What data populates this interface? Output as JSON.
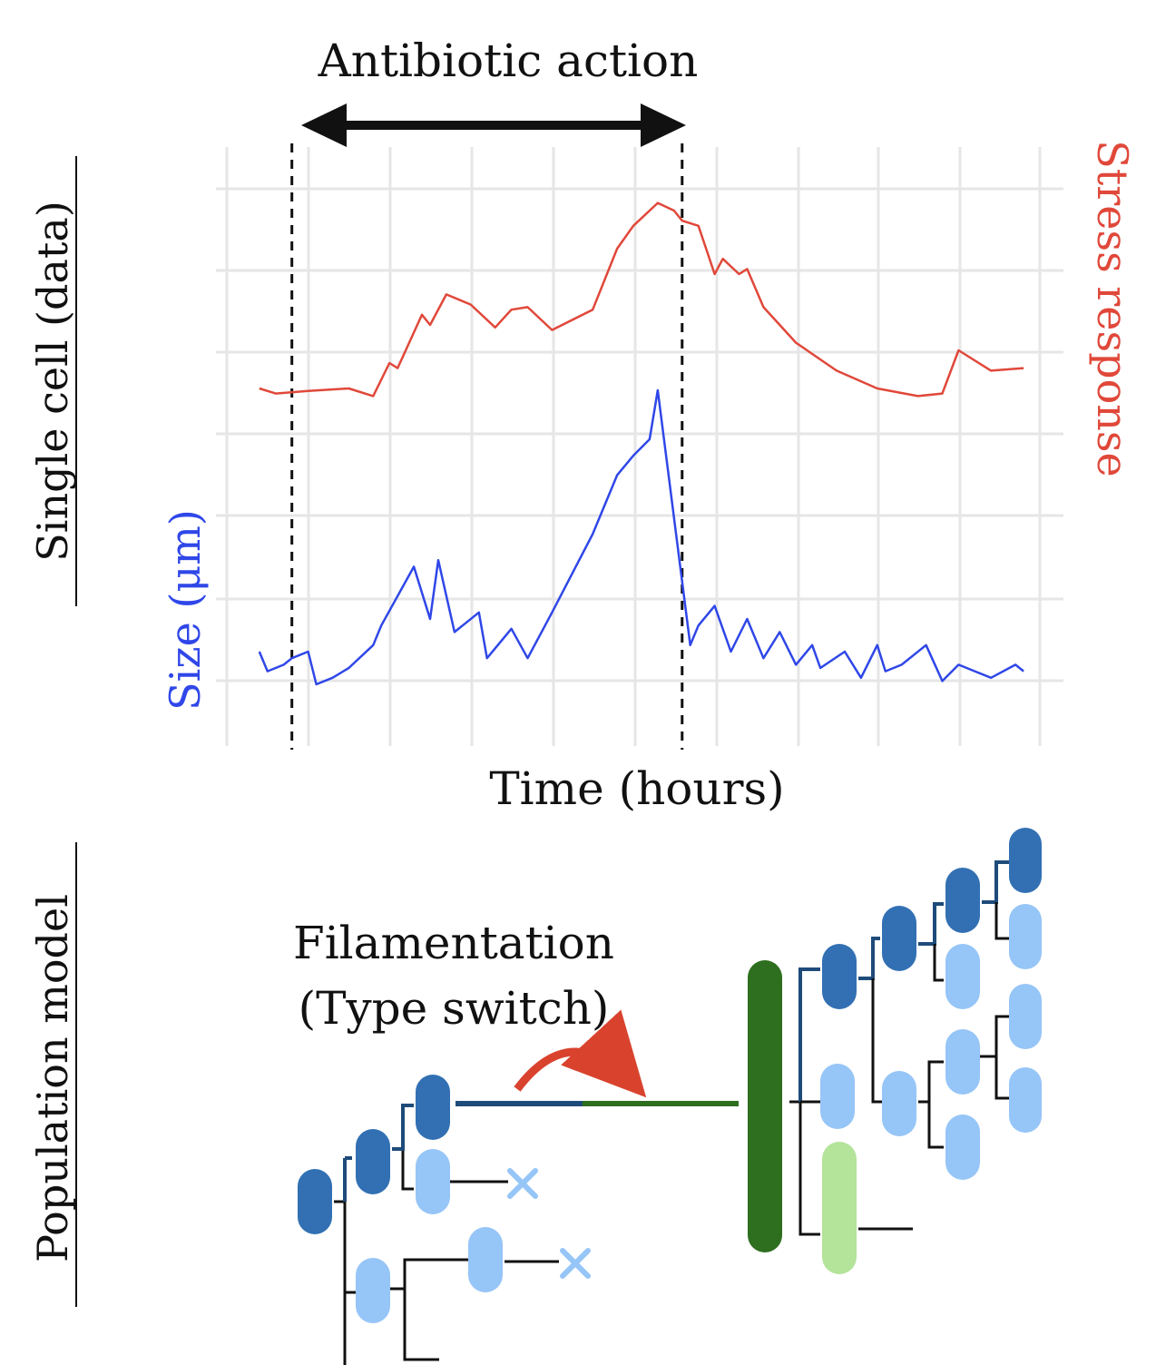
{
  "top_panel": {
    "side_label": "Single cell (data)",
    "title": "Antibiotic action",
    "right_label": "Stress response",
    "left_label": "Size (μm)",
    "x_label": "Time (hours)"
  },
  "bottom_panel": {
    "side_label": "Population model",
    "caption_line1": "Filamentation",
    "caption_line2": "(Type switch)"
  },
  "colors": {
    "stress": "#e0483a",
    "size": "#2f47e8",
    "cell_dark": "#3270b3",
    "cell_light": "#96c5f7",
    "filament": "#2e6e1f",
    "filament_light": "#b4e39a",
    "death_mark": "#96c5f7",
    "switch_arrow": "#d9432e"
  },
  "chart_data": {
    "type": "line",
    "xlabel": "Time (hours)",
    "y_left_label": "Size (μm)",
    "y_right_label": "Stress response",
    "grid": true,
    "annotations": [
      {
        "type": "interval",
        "label": "Antibiotic action",
        "start": 0.08,
        "end": 0.56
      }
    ],
    "series": [
      {
        "name": "Stress response",
        "x": [
          0.04,
          0.06,
          0.1,
          0.15,
          0.18,
          0.2,
          0.21,
          0.24,
          0.25,
          0.27,
          0.3,
          0.33,
          0.35,
          0.37,
          0.4,
          0.45,
          0.48,
          0.5,
          0.53,
          0.55,
          0.56,
          0.58,
          0.6,
          0.61,
          0.63,
          0.64,
          0.66,
          0.7,
          0.75,
          0.8,
          0.85,
          0.88,
          0.9,
          0.94,
          0.98
        ],
        "y": [
          0.15,
          0.13,
          0.14,
          0.15,
          0.12,
          0.25,
          0.23,
          0.44,
          0.4,
          0.52,
          0.48,
          0.39,
          0.46,
          0.47,
          0.38,
          0.46,
          0.7,
          0.79,
          0.88,
          0.85,
          0.81,
          0.79,
          0.6,
          0.66,
          0.6,
          0.62,
          0.47,
          0.33,
          0.22,
          0.15,
          0.12,
          0.13,
          0.3,
          0.22,
          0.23
        ]
      },
      {
        "name": "Size",
        "x": [
          0.04,
          0.05,
          0.07,
          0.08,
          0.1,
          0.11,
          0.13,
          0.15,
          0.18,
          0.19,
          0.23,
          0.25,
          0.26,
          0.28,
          0.31,
          0.32,
          0.35,
          0.37,
          0.4,
          0.45,
          0.48,
          0.5,
          0.52,
          0.53,
          0.57,
          0.58,
          0.6,
          0.62,
          0.64,
          0.66,
          0.68,
          0.7,
          0.72,
          0.73,
          0.76,
          0.78,
          0.8,
          0.81,
          0.83,
          0.86,
          0.88,
          0.9,
          0.92,
          0.94,
          0.97,
          0.98
        ],
        "y": [
          0.2,
          0.14,
          0.16,
          0.18,
          0.2,
          0.1,
          0.12,
          0.15,
          0.22,
          0.28,
          0.46,
          0.3,
          0.48,
          0.26,
          0.32,
          0.18,
          0.27,
          0.18,
          0.32,
          0.56,
          0.74,
          0.8,
          0.85,
          1.0,
          0.22,
          0.28,
          0.34,
          0.2,
          0.3,
          0.18,
          0.26,
          0.16,
          0.22,
          0.15,
          0.2,
          0.12,
          0.22,
          0.14,
          0.16,
          0.22,
          0.11,
          0.16,
          0.14,
          0.12,
          0.16,
          0.14
        ]
      }
    ]
  }
}
